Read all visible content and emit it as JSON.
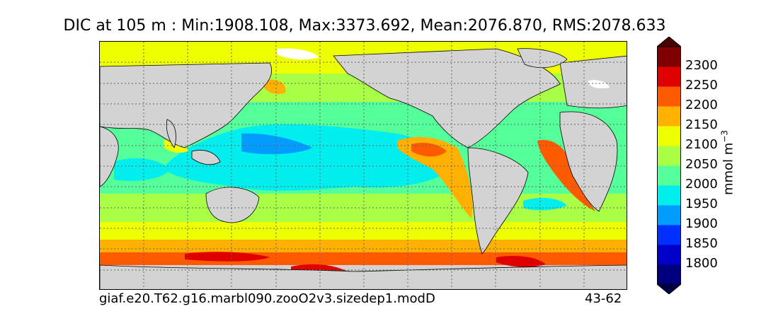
{
  "chart_data": {
    "type": "heatmap",
    "title": "DIC at 105 m : Min:1908.108, Max:3373.692, Mean:2076.870, RMS:2078.633",
    "variable": "DIC",
    "depth": "105 m",
    "stats": {
      "min": 1908.108,
      "max": 3373.692,
      "mean": 2076.87,
      "rms": 2078.633
    },
    "map": "global ocean (Pacific-centered)",
    "grid": true,
    "colorbar": {
      "label": "mmol m",
      "label_exponent": "−3",
      "extend": "both",
      "levels": [
        1750,
        1800,
        1850,
        1900,
        1950,
        2000,
        2050,
        2100,
        2150,
        2200,
        2250,
        2300,
        2350
      ],
      "tick_labels": [
        "1800",
        "1850",
        "1900",
        "1950",
        "2000",
        "2050",
        "2100",
        "2150",
        "2200",
        "2250",
        "2300"
      ],
      "colors": [
        "#00007f",
        "#0000c8",
        "#0030ff",
        "#009cff",
        "#00eeee",
        "#55ff9a",
        "#a8ff45",
        "#eeff00",
        "#ffb000",
        "#ff5a00",
        "#e00000",
        "#7f0000"
      ],
      "under_color": "#00004a",
      "over_color": "#4a0000"
    },
    "case_name": "giaf.e20.T62.g16.marbl090.zooO2v3.sizedep1.modD",
    "years": "43-62",
    "land_color": "#d3d3d3"
  }
}
